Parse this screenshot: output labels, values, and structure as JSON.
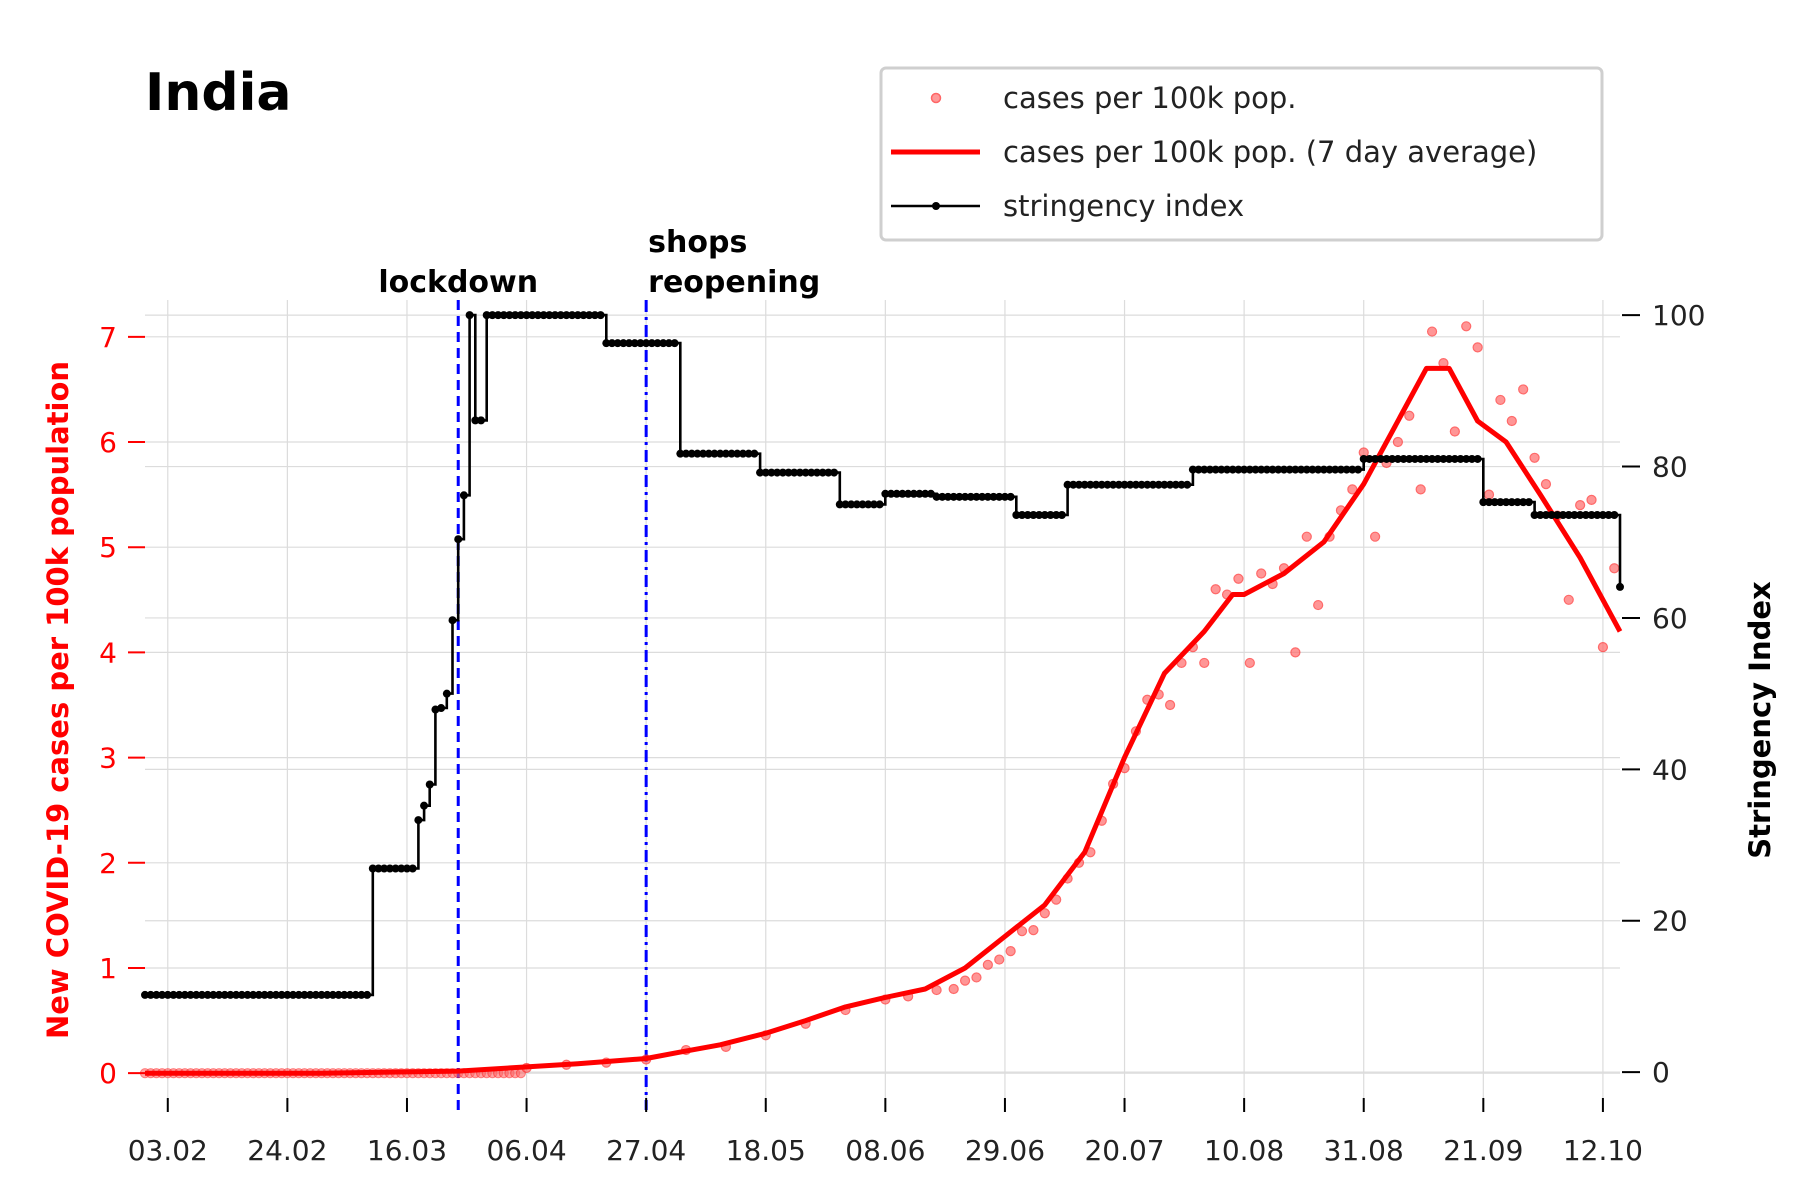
{
  "chart_data": {
    "type": "line",
    "title": "India",
    "x_tick_labels": [
      "03.02",
      "24.02",
      "16.03",
      "06.04",
      "27.04",
      "18.05",
      "08.06",
      "29.06",
      "20.07",
      "10.08",
      "31.08",
      "21.09",
      "12.10"
    ],
    "x_range": [
      "2020-01-30",
      "2020-10-15"
    ],
    "y_left": {
      "label": "New COVID-19 cases per 100k population",
      "ticks": [
        0,
        1,
        2,
        3,
        4,
        5,
        6,
        7
      ],
      "range": [
        -0.35,
        7.35
      ]
    },
    "y_right": {
      "label": "Stringency Index",
      "ticks": [
        0,
        20,
        40,
        60,
        80,
        100
      ],
      "range": [
        -5,
        102
      ]
    },
    "grid": true,
    "legend_position": "top-right",
    "legend": [
      "cases per 100k pop.",
      "cases per 100k pop. (7 day average)",
      "stringency index"
    ],
    "events": [
      {
        "date": "2020-03-25",
        "label": [
          "lockdown"
        ]
      },
      {
        "date": "2020-04-27",
        "label": [
          "shops",
          "reopening"
        ]
      }
    ],
    "series": [
      {
        "name": "cases per 100k pop. (7 day average)",
        "axis": "left",
        "points": [
          [
            "2020-01-30",
            0.0
          ],
          [
            "2020-03-01",
            0.0
          ],
          [
            "2020-03-25",
            0.02
          ],
          [
            "2020-04-06",
            0.06
          ],
          [
            "2020-04-15",
            0.09
          ],
          [
            "2020-04-27",
            0.14
          ],
          [
            "2020-05-03",
            0.2
          ],
          [
            "2020-05-10",
            0.27
          ],
          [
            "2020-05-18",
            0.38
          ],
          [
            "2020-05-25",
            0.5
          ],
          [
            "2020-06-01",
            0.63
          ],
          [
            "2020-06-08",
            0.72
          ],
          [
            "2020-06-15",
            0.8
          ],
          [
            "2020-06-22",
            1.0
          ],
          [
            "2020-06-29",
            1.3
          ],
          [
            "2020-07-06",
            1.6
          ],
          [
            "2020-07-13",
            2.1
          ],
          [
            "2020-07-20",
            3.0
          ],
          [
            "2020-07-27",
            3.8
          ],
          [
            "2020-08-03",
            4.2
          ],
          [
            "2020-08-08",
            4.55
          ],
          [
            "2020-08-10",
            4.55
          ],
          [
            "2020-08-17",
            4.75
          ],
          [
            "2020-08-24",
            5.05
          ],
          [
            "2020-08-31",
            5.6
          ],
          [
            "2020-09-07",
            6.3
          ],
          [
            "2020-09-11",
            6.7
          ],
          [
            "2020-09-15",
            6.7
          ],
          [
            "2020-09-20",
            6.2
          ],
          [
            "2020-09-25",
            6.0
          ],
          [
            "2020-10-01",
            5.5
          ],
          [
            "2020-10-08",
            4.9
          ],
          [
            "2020-10-15",
            4.2
          ]
        ]
      },
      {
        "name": "cases per 100k pop.",
        "axis": "left",
        "points": [
          [
            "2020-04-06",
            0.05
          ],
          [
            "2020-04-13",
            0.08
          ],
          [
            "2020-04-20",
            0.1
          ],
          [
            "2020-04-27",
            0.13
          ],
          [
            "2020-05-04",
            0.22
          ],
          [
            "2020-05-11",
            0.25
          ],
          [
            "2020-05-18",
            0.36
          ],
          [
            "2020-05-25",
            0.47
          ],
          [
            "2020-06-01",
            0.6
          ],
          [
            "2020-06-08",
            0.7
          ],
          [
            "2020-06-12",
            0.73
          ],
          [
            "2020-06-17",
            0.79
          ],
          [
            "2020-06-20",
            0.8
          ],
          [
            "2020-06-22",
            0.88
          ],
          [
            "2020-06-24",
            0.91
          ],
          [
            "2020-06-26",
            1.03
          ],
          [
            "2020-06-28",
            1.08
          ],
          [
            "2020-06-30",
            1.16
          ],
          [
            "2020-07-02",
            1.35
          ],
          [
            "2020-07-04",
            1.36
          ],
          [
            "2020-07-06",
            1.52
          ],
          [
            "2020-07-08",
            1.65
          ],
          [
            "2020-07-10",
            1.85
          ],
          [
            "2020-07-12",
            2.0
          ],
          [
            "2020-07-14",
            2.1
          ],
          [
            "2020-07-16",
            2.4
          ],
          [
            "2020-07-18",
            2.75
          ],
          [
            "2020-07-20",
            2.9
          ],
          [
            "2020-07-22",
            3.25
          ],
          [
            "2020-07-24",
            3.55
          ],
          [
            "2020-07-26",
            3.6
          ],
          [
            "2020-07-28",
            3.5
          ],
          [
            "2020-07-30",
            3.9
          ],
          [
            "2020-08-01",
            4.05
          ],
          [
            "2020-08-03",
            3.9
          ],
          [
            "2020-08-05",
            4.6
          ],
          [
            "2020-08-07",
            4.55
          ],
          [
            "2020-08-09",
            4.7
          ],
          [
            "2020-08-11",
            3.9
          ],
          [
            "2020-08-13",
            4.75
          ],
          [
            "2020-08-15",
            4.65
          ],
          [
            "2020-08-17",
            4.8
          ],
          [
            "2020-08-19",
            4.0
          ],
          [
            "2020-08-21",
            5.1
          ],
          [
            "2020-08-23",
            4.45
          ],
          [
            "2020-08-25",
            5.1
          ],
          [
            "2020-08-27",
            5.35
          ],
          [
            "2020-08-29",
            5.55
          ],
          [
            "2020-08-31",
            5.9
          ],
          [
            "2020-09-02",
            5.1
          ],
          [
            "2020-09-04",
            5.8
          ],
          [
            "2020-09-06",
            6.0
          ],
          [
            "2020-09-08",
            6.25
          ],
          [
            "2020-09-10",
            5.55
          ],
          [
            "2020-09-12",
            7.05
          ],
          [
            "2020-09-14",
            6.75
          ],
          [
            "2020-09-16",
            6.1
          ],
          [
            "2020-09-18",
            7.1
          ],
          [
            "2020-09-20",
            6.9
          ],
          [
            "2020-09-22",
            5.5
          ],
          [
            "2020-09-24",
            6.4
          ],
          [
            "2020-09-26",
            6.2
          ],
          [
            "2020-09-28",
            6.5
          ],
          [
            "2020-09-30",
            5.85
          ],
          [
            "2020-10-02",
            5.6
          ],
          [
            "2020-10-04",
            5.3
          ],
          [
            "2020-10-06",
            4.5
          ],
          [
            "2020-10-08",
            5.4
          ],
          [
            "2020-10-10",
            5.45
          ],
          [
            "2020-10-12",
            4.05
          ],
          [
            "2020-10-14",
            4.8
          ]
        ]
      },
      {
        "name": "stringency index",
        "axis": "right",
        "steps": [
          [
            "2020-01-30",
            10.2
          ],
          [
            "2020-03-10",
            26.9
          ],
          [
            "2020-03-17",
            26.9
          ],
          [
            "2020-03-18",
            33.3
          ],
          [
            "2020-03-19",
            35.2
          ],
          [
            "2020-03-20",
            38.0
          ],
          [
            "2020-03-21",
            47.9
          ],
          [
            "2020-03-22",
            48.1
          ],
          [
            "2020-03-23",
            50.0
          ],
          [
            "2020-03-24",
            59.7
          ],
          [
            "2020-03-25",
            70.4
          ],
          [
            "2020-03-26",
            76.2
          ],
          [
            "2020-03-27",
            100.0
          ],
          [
            "2020-03-28",
            86.1
          ],
          [
            "2020-03-30",
            100.0
          ],
          [
            "2020-04-19",
            100.0
          ],
          [
            "2020-04-20",
            96.3
          ],
          [
            "2020-05-02",
            96.3
          ],
          [
            "2020-05-03",
            81.7
          ],
          [
            "2020-05-17",
            79.2
          ],
          [
            "2020-05-31",
            75.0
          ],
          [
            "2020-06-08",
            76.4
          ],
          [
            "2020-06-17",
            76.0
          ],
          [
            "2020-07-01",
            73.6
          ],
          [
            "2020-07-10",
            77.6
          ],
          [
            "2020-08-01",
            79.6
          ],
          [
            "2020-08-31",
            81.0
          ],
          [
            "2020-09-21",
            75.3
          ],
          [
            "2020-09-30",
            73.6
          ],
          [
            "2020-10-15",
            64.1
          ]
        ]
      }
    ],
    "colors": {
      "cases": "#ff0000",
      "stringency": "#000000",
      "events": "#0000ff",
      "left_axis": "#ff0000",
      "right_axis": "#000000",
      "grid": "#dcdcdc"
    }
  }
}
